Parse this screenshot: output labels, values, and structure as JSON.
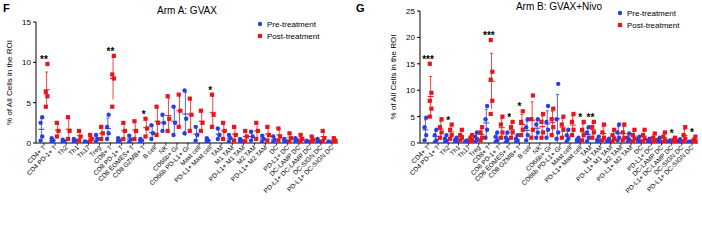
{
  "chart_data": [
    {
      "type": "scatter",
      "panel_label": "F",
      "title": "Arm A: GVAX",
      "y_label": "% of All Cells in the ROI",
      "categories": [
        "CD4+ T",
        "CD4 PD-1+ T",
        "Th2",
        "Th1",
        "Th17",
        "Treg",
        "CD8+ T",
        "CD8 PD-1+ T",
        "CD8 EOMES+ T",
        "CD8 GZMB+ T",
        "B cell",
        "NK",
        "CD66b+ Gr",
        "CD66b PD-L1+ Gr",
        "Mast cell",
        "PD-L1+ Mast cell",
        "TAM",
        "M1 TAM",
        "PD-L1+ M1 TAM",
        "M2 TAM",
        "PD-L1+ M2 TAM",
        "DC",
        "PD-L1+ DC",
        "DC-LAMP DC",
        "PD-L1+ DC-LAMP DC",
        "DC-SIGN DC",
        "PD-L1+ DC-SIGN DC"
      ],
      "ylim": [
        0,
        15
      ],
      "yticks": [
        0,
        5,
        10,
        15
      ],
      "legend": "upper right",
      "series": [
        {
          "name": "Pre-treatment",
          "color": "#2a3fe0",
          "marker": "circle",
          "values": [
            [
              0.3,
              0.8,
              2.5,
              3.2
            ],
            [
              0.1,
              0.3,
              0.6
            ],
            [
              0.1,
              0.2,
              0.4
            ],
            [
              0.1,
              0.3,
              0.5
            ],
            [
              0.05,
              0.1,
              0.2
            ],
            [
              0.2,
              0.5,
              1.0
            ],
            [
              0.5,
              1.2,
              2.0,
              3.5
            ],
            [
              0.1,
              0.3,
              0.6
            ],
            [
              0.1,
              0.4,
              0.9
            ],
            [
              0.1,
              0.3,
              0.5
            ],
            [
              0.5,
              1.2,
              2.2
            ],
            [
              1.5,
              2.5,
              3.5
            ],
            [
              1.0,
              2.5,
              4.5
            ],
            [
              1.2,
              3.0,
              6.5
            ],
            [
              0.3,
              1.0,
              2.0
            ],
            [
              0.1,
              0.3,
              0.6
            ],
            [
              0.5,
              1.0,
              1.8
            ],
            [
              0.2,
              0.6,
              1.0
            ],
            [
              0.1,
              0.3,
              0.5
            ],
            [
              0.3,
              0.8,
              1.4
            ],
            [
              0.2,
              0.5,
              0.9
            ],
            [
              0.1,
              0.4,
              0.8
            ],
            [
              0.1,
              0.2,
              0.5
            ],
            [
              0.1,
              0.3,
              0.6
            ],
            [
              0.05,
              0.15,
              0.3
            ],
            [
              0.1,
              0.2,
              0.5
            ],
            [
              0.05,
              0.1,
              0.2
            ]
          ],
          "means": [
            1.7,
            0.3,
            0.2,
            0.3,
            0.1,
            0.6,
            1.8,
            0.3,
            0.5,
            0.3,
            1.3,
            2.5,
            2.7,
            3.6,
            1.1,
            0.3,
            1.1,
            0.6,
            0.3,
            0.8,
            0.5,
            0.4,
            0.3,
            0.3,
            0.2,
            0.3,
            0.1
          ],
          "errors": [
            1.4,
            0.3,
            0.2,
            0.2,
            0.1,
            0.4,
            1.3,
            0.3,
            0.4,
            0.2,
            0.9,
            1.0,
            1.8,
            2.7,
            0.9,
            0.3,
            0.7,
            0.4,
            0.2,
            0.6,
            0.4,
            0.4,
            0.2,
            0.3,
            0.1,
            0.2,
            0.1
          ]
        },
        {
          "name": "Post-treatment",
          "color": "#e8161b",
          "marker": "square",
          "values": [
            [
              4.5,
              5.8,
              6.3,
              9.8
            ],
            [
              0.8,
              1.5,
              2.5
            ],
            [
              0.5,
              1.5,
              3.2
            ],
            [
              0.3,
              0.8,
              1.5
            ],
            [
              0.2,
              0.5,
              1.0
            ],
            [
              0.5,
              1.2,
              2.0
            ],
            [
              4.5,
              8.0,
              8.5,
              10.8
            ],
            [
              0.5,
              1.5,
              2.5
            ],
            [
              0.5,
              1.5,
              2.7
            ],
            [
              0.8,
              1.8,
              3.0
            ],
            [
              1.0,
              2.5,
              4.5
            ],
            [
              1.5,
              3.0,
              5.8
            ],
            [
              2.0,
              4.0,
              6.0
            ],
            [
              1.5,
              3.5,
              5.5
            ],
            [
              1.5,
              2.5,
              4.0
            ],
            [
              2.0,
              3.5,
              6.0
            ],
            [
              0.5,
              1.5,
              2.5
            ],
            [
              0.3,
              1.0,
              2.0
            ],
            [
              0.2,
              0.8,
              1.5
            ],
            [
              0.5,
              1.5,
              2.5
            ],
            [
              0.3,
              1.0,
              2.0
            ],
            [
              0.3,
              0.8,
              1.8
            ],
            [
              0.2,
              0.6,
              1.2
            ],
            [
              0.2,
              0.5,
              1.0
            ],
            [
              0.1,
              0.4,
              0.8
            ],
            [
              0.2,
              0.6,
              1.5
            ],
            [
              0.1,
              0.3,
              0.6
            ]
          ],
          "means": [
            6.6,
            1.6,
            1.7,
            0.9,
            0.6,
            1.2,
            8.0,
            1.5,
            1.6,
            1.9,
            2.7,
            3.4,
            4.0,
            3.5,
            2.7,
            3.8,
            1.5,
            1.1,
            0.8,
            1.5,
            1.1,
            1.0,
            0.7,
            0.6,
            0.4,
            0.8,
            0.3
          ],
          "errors": [
            2.2,
            0.9,
            1.4,
            0.6,
            0.4,
            0.8,
            2.6,
            1.0,
            1.1,
            1.1,
            1.8,
            2.2,
            2.0,
            2.0,
            1.3,
            2.0,
            1.0,
            0.9,
            0.7,
            1.0,
            0.9,
            0.8,
            0.5,
            0.4,
            0.4,
            0.7,
            0.3
          ]
        }
      ],
      "annotations": [
        {
          "category": "CD4+ T",
          "text": "**"
        },
        {
          "category": "CD8+ T",
          "text": "**"
        },
        {
          "category": "CD8 GZMB+ T",
          "text": "*"
        },
        {
          "category": "PD-L1+ Mast cell",
          "text": "*"
        }
      ]
    },
    {
      "type": "scatter",
      "panel_label": "G",
      "title": "Arm B: GVAX+Nivo",
      "y_label": "% of All Cells in the ROI",
      "categories": [
        "CD4+ T",
        "CD4 PD-1+ T",
        "Th2",
        "Th1",
        "Th17",
        "Treg",
        "CD8+ T",
        "CD8 PD-1+ T",
        "CD8 EOMES+ T",
        "CD8 GZMB+ T",
        "B cell",
        "NK",
        "CD66b+ Gr",
        "CD66b PD-L1+ Gr",
        "Mast cell",
        "PD-L1+ Mast cell",
        "TAM",
        "M1 TAM",
        "PD-L1+ M1 TAM",
        "M2 TAM",
        "PD-L1+ M2 TAM",
        "DC",
        "PD-L1+ DC",
        "DC-LAMP DC",
        "PD-L1+ DC-LAMP DC",
        "DC-SIGN DC",
        "PD-L1+ DC-SIGN DC"
      ],
      "ylim": [
        0,
        25
      ],
      "yticks": [
        0,
        5,
        10,
        15,
        20,
        25
      ],
      "legend": "upper right",
      "series": [
        {
          "name": "Pre-treatment",
          "color": "#2a3fe0",
          "marker": "circle",
          "values": [
            [
              0.5,
              1.5,
              3.0,
              4.8
            ],
            [
              0.1,
              0.5,
              1.5,
              2.5
            ],
            [
              0.1,
              0.3,
              0.8,
              1.5
            ],
            [
              0.1,
              0.3,
              0.6,
              1.0
            ],
            [
              0.05,
              0.1,
              0.3,
              0.5
            ],
            [
              0.2,
              0.6,
              1.2,
              2.0
            ],
            [
              1.0,
              2.5,
              4.5,
              7.0
            ],
            [
              0.2,
              0.5,
              1.2,
              2.0
            ],
            [
              0.1,
              0.5,
              1.0,
              2.0
            ],
            [
              0.1,
              0.4,
              0.8,
              1.5
            ],
            [
              0.5,
              1.5,
              3.0,
              4.5
            ],
            [
              1.0,
              2.0,
              3.5,
              4.5
            ],
            [
              1.0,
              2.5,
              4.0,
              7.0
            ],
            [
              0.8,
              2.0,
              4.5,
              11.2
            ],
            [
              0.3,
              0.8,
              1.5,
              2.5
            ],
            [
              0.1,
              0.3,
              0.6,
              1.0
            ],
            [
              0.3,
              1.0,
              2.0,
              3.0
            ],
            [
              0.1,
              0.3,
              0.6,
              1.2
            ],
            [
              0.1,
              0.2,
              0.4,
              0.8
            ],
            [
              0.5,
              1.0,
              2.0,
              3.5
            ],
            [
              0.2,
              0.5,
              1.0,
              1.8
            ],
            [
              0.1,
              0.3,
              0.7,
              1.2
            ],
            [
              0.1,
              0.2,
              0.5,
              0.8
            ],
            [
              0.1,
              0.3,
              0.6,
              1.0
            ],
            [
              0.05,
              0.1,
              0.3,
              0.5
            ],
            [
              0.1,
              0.2,
              0.4,
              0.7
            ],
            [
              0.05,
              0.1,
              0.2,
              0.3
            ]
          ],
          "means": [
            2.5,
            1.2,
            0.7,
            0.5,
            0.2,
            1.0,
            3.8,
            1.0,
            0.9,
            0.7,
            2.4,
            2.8,
            3.6,
            4.6,
            1.3,
            0.5,
            1.6,
            0.6,
            0.4,
            1.8,
            0.9,
            0.6,
            0.4,
            0.5,
            0.2,
            0.4,
            0.2
          ],
          "errors": [
            1.9,
            1.1,
            0.6,
            0.4,
            0.2,
            0.8,
            2.6,
            0.8,
            0.8,
            0.6,
            1.8,
            1.6,
            2.5,
            4.6,
            1.0,
            0.4,
            1.2,
            0.5,
            0.3,
            1.3,
            0.7,
            0.5,
            0.3,
            0.4,
            0.2,
            0.3,
            0.1
          ]
        },
        {
          "name": "Post-treatment",
          "color": "#e8161b",
          "marker": "square",
          "values": [
            [
              5.0,
              6.5,
              8.0,
              9.5,
              15.0
            ],
            [
              1.0,
              2.0,
              3.0,
              4.5
            ],
            [
              0.8,
              1.5,
              2.5,
              3.5
            ],
            [
              0.5,
              1.0,
              1.5,
              2.5
            ],
            [
              0.2,
              0.5,
              1.0,
              1.5
            ],
            [
              0.5,
              1.0,
              2.0,
              3.0
            ],
            [
              5.5,
              8.0,
              12.0,
              13.5,
              19.5
            ],
            [
              1.0,
              2.0,
              3.5,
              5.0
            ],
            [
              1.0,
              2.0,
              3.0,
              4.0
            ],
            [
              1.5,
              2.5,
              4.0,
              6.0
            ],
            [
              1.0,
              2.5,
              4.5,
              9.0
            ],
            [
              1.0,
              2.0,
              4.0,
              5.5
            ],
            [
              1.5,
              3.0,
              4.5,
              6.5
            ],
            [
              1.0,
              2.5,
              3.5,
              5.0
            ],
            [
              1.5,
              2.5,
              4.0,
              5.5
            ],
            [
              0.5,
              1.5,
              2.5,
              4.0
            ],
            [
              1.0,
              2.0,
              3.0,
              4.0
            ],
            [
              0.5,
              1.0,
              2.0,
              3.5
            ],
            [
              0.3,
              0.8,
              1.5,
              2.5
            ],
            [
              0.5,
              1.0,
              2.0,
              3.5
            ],
            [
              0.3,
              0.8,
              1.5,
              2.5
            ],
            [
              0.3,
              0.8,
              1.5,
              2.5
            ],
            [
              0.2,
              0.5,
              1.0,
              1.8
            ],
            [
              0.2,
              0.5,
              1.2,
              2.0
            ],
            [
              0.1,
              0.3,
              0.6,
              1.0
            ],
            [
              0.3,
              0.8,
              1.5,
              3.0
            ],
            [
              0.1,
              0.3,
              0.6,
              1.2
            ]
          ],
          "means": [
            8.8,
            2.6,
            2.1,
            1.4,
            0.8,
            1.6,
            11.7,
            2.9,
            2.5,
            3.5,
            4.3,
            3.1,
            3.9,
            3.0,
            3.4,
            2.1,
            2.5,
            1.8,
            1.3,
            1.8,
            1.3,
            1.3,
            0.9,
            1.0,
            0.5,
            1.4,
            0.6
          ],
          "errors": [
            3.8,
            1.5,
            1.2,
            0.9,
            0.6,
            1.1,
            5.3,
            1.7,
            1.3,
            1.9,
            3.5,
            2.0,
            2.1,
            1.7,
            1.7,
            1.5,
            1.3,
            1.3,
            1.0,
            1.3,
            1.0,
            1.0,
            0.7,
            0.8,
            0.4,
            1.2,
            0.5
          ]
        }
      ],
      "annotations": [
        {
          "category": "CD4+ T",
          "text": "***"
        },
        {
          "category": "Th2",
          "text": "*"
        },
        {
          "category": "CD8+ T",
          "text": "***"
        },
        {
          "category": "CD8 EOMES+ T",
          "text": "*"
        },
        {
          "category": "CD8 GZMB+ T",
          "text": "*"
        },
        {
          "category": "PD-L1+ Mast cell",
          "text": "*"
        },
        {
          "category": "TAM",
          "text": "**"
        },
        {
          "category": "PD-L1+ DC-LAMP DC",
          "text": "*"
        },
        {
          "category": "PD-L1+ DC-SIGN DC",
          "text": "*"
        }
      ]
    }
  ]
}
